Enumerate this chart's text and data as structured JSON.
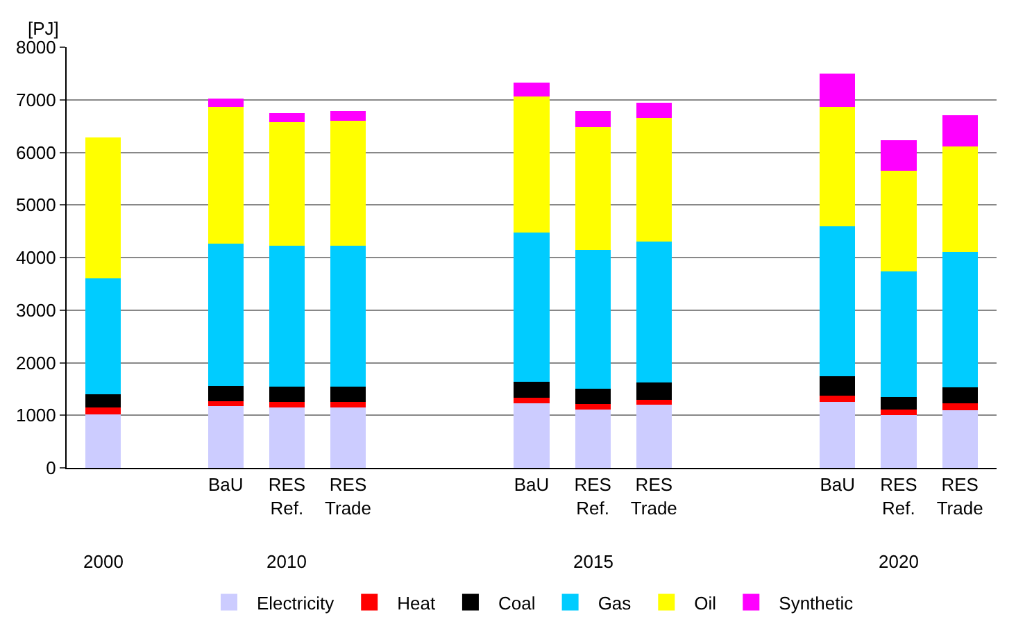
{
  "chart_data": {
    "type": "bar",
    "stacked": true,
    "ylabel": "[PJ]",
    "categories": [
      null,
      null,
      "BaU",
      "RES Ref.",
      "RES Trade",
      null,
      null,
      "BaU",
      "RES Ref.",
      "RES Trade",
      null,
      null,
      "BaU",
      "RES Ref.",
      "RES Trade"
    ],
    "series": [
      {
        "name": "Electricity",
        "color": "#ccccff",
        "values": [
          1020,
          null,
          1170,
          1150,
          1150,
          null,
          null,
          1230,
          1110,
          1200,
          null,
          null,
          1260,
          1000,
          1100
        ]
      },
      {
        "name": "Heat",
        "color": "#ff0000",
        "values": [
          130,
          null,
          100,
          110,
          110,
          null,
          null,
          110,
          110,
          100,
          null,
          null,
          110,
          110,
          130
        ]
      },
      {
        "name": "Coal",
        "color": "#000000",
        "values": [
          250,
          null,
          290,
          280,
          290,
          null,
          null,
          300,
          290,
          320,
          null,
          null,
          370,
          240,
          300
        ]
      },
      {
        "name": "Gas",
        "color": "#00ccff",
        "values": [
          2200,
          null,
          2710,
          2680,
          2680,
          null,
          null,
          2840,
          2640,
          2690,
          null,
          null,
          2850,
          2380,
          2580
        ]
      },
      {
        "name": "Oil",
        "color": "#ffff00",
        "values": [
          2680,
          null,
          2590,
          2360,
          2370,
          null,
          null,
          2580,
          2330,
          2350,
          null,
          null,
          2270,
          1920,
          2000
        ]
      },
      {
        "name": "Synthetic",
        "color": "#ff00ff",
        "values": [
          0,
          null,
          160,
          170,
          190,
          null,
          null,
          270,
          300,
          280,
          null,
          null,
          640,
          580,
          600
        ]
      }
    ],
    "annotations": [
      "2000",
      "2010",
      "2015",
      "2020"
    ],
    "ylim": [
      0,
      8000
    ],
    "yticks": [
      0,
      1000,
      2000,
      3000,
      4000,
      5000,
      6000,
      7000,
      8000
    ],
    "grid": "y",
    "legend": "bottom"
  }
}
